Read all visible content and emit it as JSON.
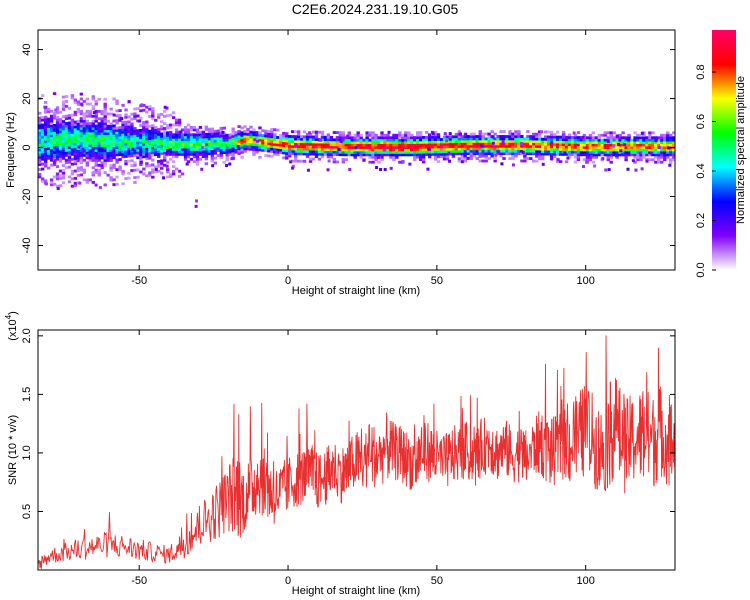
{
  "title": "C2E6.2024.231.19.10.G05",
  "chart_data": [
    {
      "type": "heatmap",
      "xlabel": "Height of straight line (km)",
      "ylabel": "Frequency (Hz)",
      "xlim": [
        -84,
        130
      ],
      "ylim": [
        -50,
        48
      ],
      "xticks": [
        -50,
        0,
        50,
        100
      ],
      "yticks": [
        -40,
        -20,
        0,
        20,
        40
      ],
      "colorbar": {
        "label": "Normalized spectral amplitude",
        "range": [
          0.0,
          0.97
        ],
        "ticks": [
          0.0,
          0.2,
          0.4,
          0.6,
          0.8
        ],
        "tick_labels": [
          "0.0",
          "0.2",
          "0.4",
          "0.6",
          "0.8"
        ],
        "colors": [
          "#ffffff",
          "#8000ff",
          "#0000ff",
          "#00ffff",
          "#00ff00",
          "#ffff00",
          "#ff0000",
          "#ff0066"
        ]
      },
      "band": [
        {
          "x": -84,
          "center": 2.0,
          "halfwidth": 8.0,
          "intensity": 0.45
        },
        {
          "x": -70,
          "center": 3.0,
          "halfwidth": 7.0,
          "intensity": 0.5
        },
        {
          "x": -60,
          "center": 2.0,
          "halfwidth": 6.5,
          "intensity": 0.5
        },
        {
          "x": -50,
          "center": 1.5,
          "halfwidth": 5.5,
          "intensity": 0.45
        },
        {
          "x": -40,
          "center": 1.0,
          "halfwidth": 4.0,
          "intensity": 0.55
        },
        {
          "x": -30,
          "center": 1.0,
          "halfwidth": 4.0,
          "intensity": 0.55
        },
        {
          "x": -20,
          "center": 1.0,
          "halfwidth": 3.5,
          "intensity": 0.5
        },
        {
          "x": -15,
          "center": 2.5,
          "halfwidth": 3.0,
          "intensity": 0.8
        },
        {
          "x": -10,
          "center": 2.0,
          "halfwidth": 3.0,
          "intensity": 0.75
        },
        {
          "x": 0,
          "center": 0.5,
          "halfwidth": 3.0,
          "intensity": 0.85
        },
        {
          "x": 20,
          "center": 0.0,
          "halfwidth": 3.0,
          "intensity": 0.9
        },
        {
          "x": 40,
          "center": 0.0,
          "halfwidth": 3.0,
          "intensity": 0.95
        },
        {
          "x": 60,
          "center": 0.5,
          "halfwidth": 3.0,
          "intensity": 0.9
        },
        {
          "x": 80,
          "center": 0.5,
          "halfwidth": 3.0,
          "intensity": 0.85
        },
        {
          "x": 100,
          "center": 0.0,
          "halfwidth": 3.0,
          "intensity": 0.8
        },
        {
          "x": 130,
          "center": 0.0,
          "halfwidth": 3.0,
          "intensity": 0.8
        }
      ]
    },
    {
      "type": "line",
      "xlabel": "Height of straight line (km)",
      "ylabel": "SNR (10 * v/v)",
      "y_multiplier": "(x10",
      "y_multiplier_exp": "4",
      "xlim": [
        -84,
        130
      ],
      "ylim": [
        0,
        2.05
      ],
      "xticks": [
        -50,
        0,
        50,
        100
      ],
      "yticks": [
        0.5,
        1.0,
        1.5,
        2.0
      ],
      "ytick_labels": [
        "0.5",
        "1.0",
        "1.5",
        "2.0"
      ],
      "series": [
        {
          "color": "#e83030",
          "x": [
            -84,
            -80,
            -75,
            -70,
            -65,
            -60,
            -55,
            -50,
            -45,
            -40,
            -36,
            -32,
            -28,
            -24,
            -20,
            -17,
            -15,
            -12,
            -10,
            -7,
            -5,
            -2,
            0,
            3,
            5,
            8,
            10,
            13,
            15,
            18,
            20,
            23,
            25,
            28,
            30,
            33,
            35,
            38,
            40,
            43,
            45,
            48,
            50,
            53,
            55,
            58,
            60,
            63,
            65,
            68,
            70,
            73,
            75,
            78,
            80,
            83,
            85,
            88,
            90,
            93,
            95,
            98,
            100,
            103,
            105,
            108,
            110,
            113,
            115,
            118,
            120,
            123,
            125,
            128,
            130
          ],
          "y": [
            0.05,
            0.12,
            0.15,
            0.18,
            0.2,
            0.22,
            0.2,
            0.17,
            0.15,
            0.13,
            0.2,
            0.3,
            0.42,
            0.5,
            0.62,
            0.65,
            0.6,
            0.7,
            0.78,
            0.72,
            0.62,
            0.68,
            0.72,
            0.78,
            0.8,
            0.83,
            0.75,
            0.8,
            0.88,
            0.82,
            0.85,
            0.95,
            0.9,
            1.0,
            0.95,
            1.05,
            1.02,
            0.98,
            0.95,
            0.9,
            1.05,
            1.0,
            0.95,
            0.92,
            0.98,
            1.0,
            1.02,
            0.95,
            1.05,
            1.08,
            1.0,
            1.05,
            0.98,
            1.0,
            0.95,
            1.05,
            1.1,
            1.0,
            1.02,
            1.08,
            1.05,
            1.15,
            1.2,
            1.1,
            1.0,
            1.15,
            1.25,
            1.05,
            1.1,
            1.15,
            1.12,
            1.1,
            1.2,
            1.1,
            1.05
          ],
          "noise": [
            0.06,
            0.07,
            0.08,
            0.1,
            0.1,
            0.12,
            0.1,
            0.1,
            0.08,
            0.08,
            0.12,
            0.15,
            0.2,
            0.25,
            0.3,
            0.4,
            0.3,
            0.3,
            0.3,
            0.3,
            0.25,
            0.25,
            0.25,
            0.25,
            0.25,
            0.25,
            0.25,
            0.25,
            0.25,
            0.25,
            0.25,
            0.25,
            0.25,
            0.3,
            0.25,
            0.3,
            0.25,
            0.25,
            0.25,
            0.25,
            0.3,
            0.25,
            0.25,
            0.25,
            0.25,
            0.25,
            0.25,
            0.25,
            0.25,
            0.25,
            0.25,
            0.25,
            0.25,
            0.25,
            0.25,
            0.25,
            0.3,
            0.3,
            0.3,
            0.3,
            0.35,
            0.4,
            0.4,
            0.4,
            0.4,
            0.45,
            0.45,
            0.4,
            0.4,
            0.4,
            0.45,
            0.4,
            0.4,
            0.4,
            0.4
          ]
        }
      ]
    }
  ]
}
